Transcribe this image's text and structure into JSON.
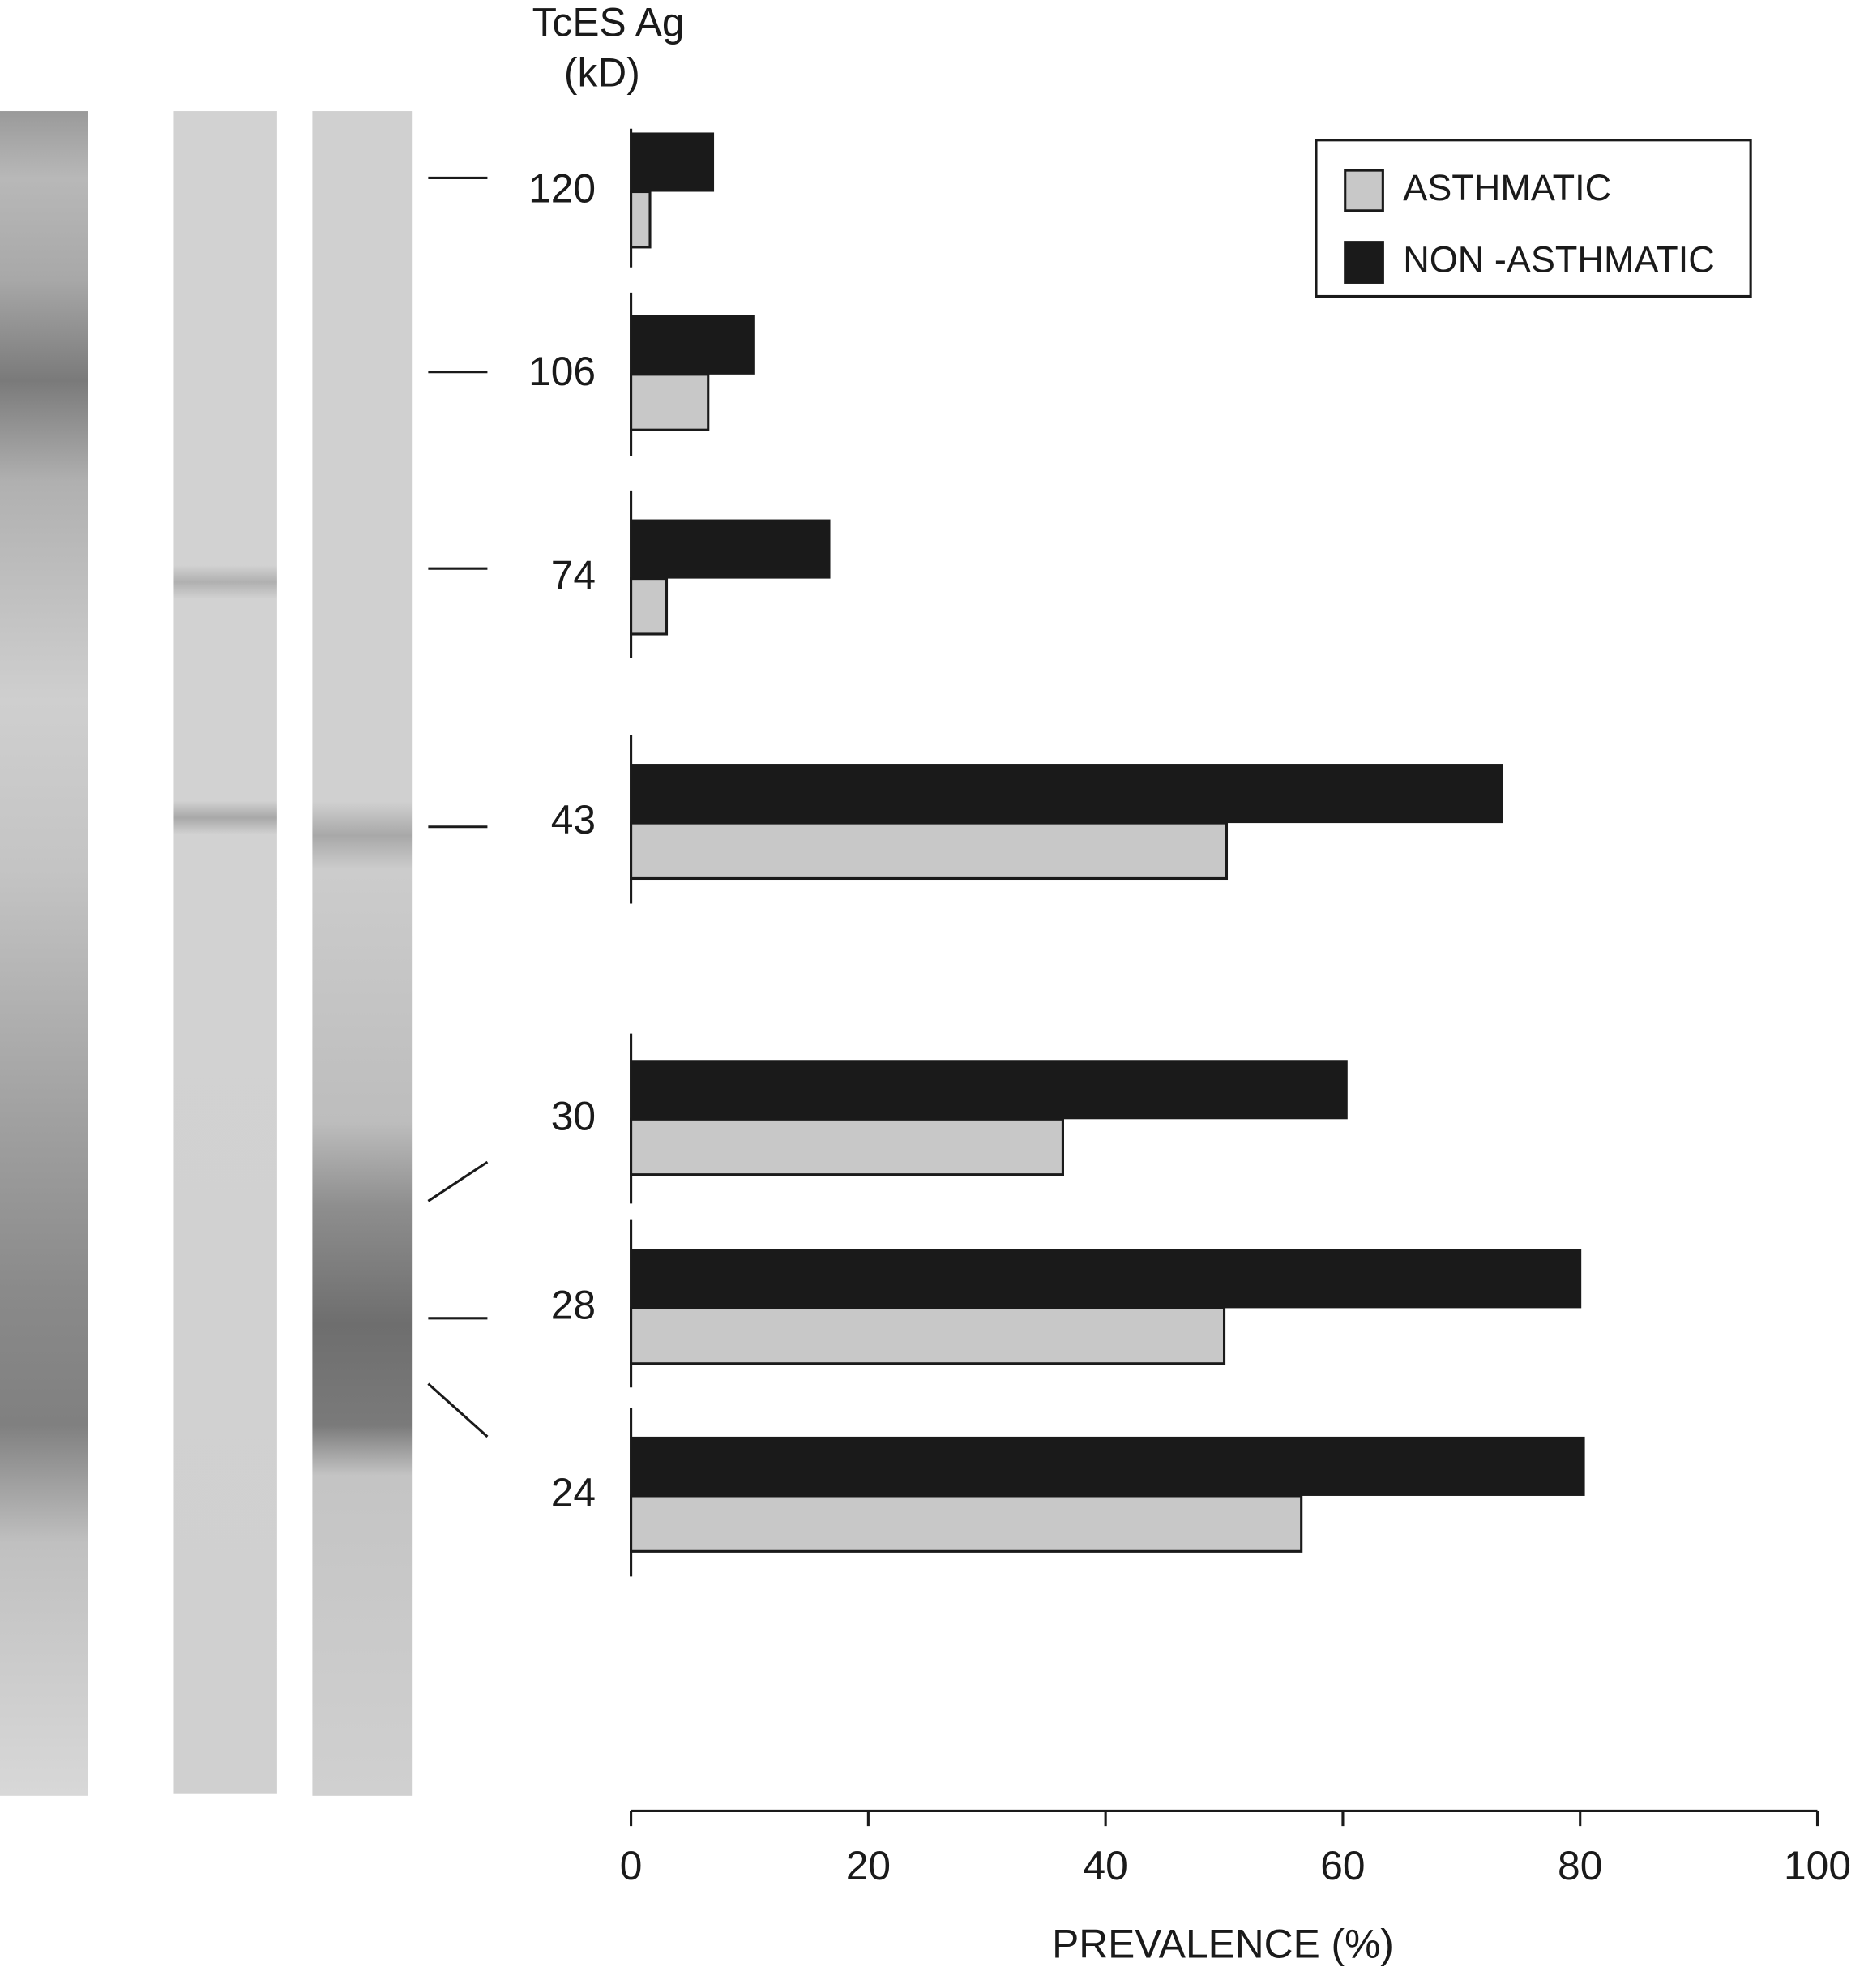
{
  "chart_data": {
    "type": "hbar",
    "y_label_lines": [
      "TcES Ag",
      "(kD)"
    ],
    "x_label": "PREVALENCE (%)",
    "categories": [
      "120",
      "106",
      "74",
      "43",
      "30",
      "28",
      "24"
    ],
    "series": [
      {
        "name": "ASTHMATIC",
        "color": "#c8c8c8",
        "values": [
          1.6,
          6.5,
          3.0,
          50.2,
          36.4,
          50.0,
          56.5
        ]
      },
      {
        "name": "NON -ASTHMATIC",
        "color": "#1a1a1a",
        "values": [
          7.0,
          10.4,
          16.8,
          73.5,
          60.4,
          80.1,
          80.4
        ]
      }
    ],
    "xlim": [
      0,
      100
    ],
    "xticks": [
      0,
      20,
      40,
      60,
      80,
      100
    ]
  }
}
